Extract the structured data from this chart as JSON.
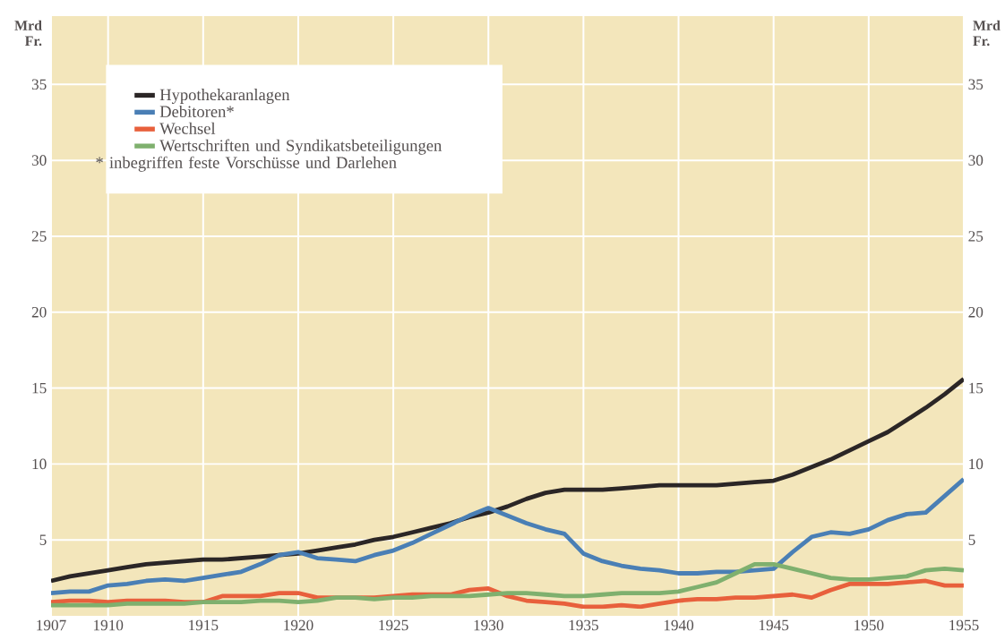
{
  "chart_data": {
    "type": "line",
    "ylabel": "Mrd Fr.",
    "y2label": "Mrd Fr.",
    "x": [
      1907,
      1908,
      1909,
      1910,
      1911,
      1912,
      1913,
      1914,
      1915,
      1916,
      1917,
      1918,
      1919,
      1920,
      1921,
      1922,
      1923,
      1924,
      1925,
      1926,
      1927,
      1928,
      1929,
      1930,
      1931,
      1932,
      1933,
      1934,
      1935,
      1936,
      1937,
      1938,
      1939,
      1940,
      1941,
      1942,
      1943,
      1944,
      1945,
      1946,
      1947,
      1948,
      1949,
      1950,
      1951,
      1952,
      1953,
      1954,
      1955
    ],
    "series": [
      {
        "name": "Hypothekaranlagen",
        "color": "#2b2626",
        "values": [
          2.3,
          2.6,
          2.8,
          3.0,
          3.2,
          3.4,
          3.5,
          3.6,
          3.7,
          3.7,
          3.8,
          3.9,
          4.0,
          4.1,
          4.3,
          4.5,
          4.7,
          5.0,
          5.2,
          5.5,
          5.8,
          6.1,
          6.5,
          6.8,
          7.2,
          7.7,
          8.1,
          8.3,
          8.3,
          8.3,
          8.4,
          8.5,
          8.6,
          8.6,
          8.6,
          8.6,
          8.7,
          8.8,
          8.9,
          9.3,
          9.8,
          10.3,
          10.9,
          11.5,
          12.1,
          12.9,
          13.7,
          14.6,
          15.6
        ]
      },
      {
        "name": "Debitoren*",
        "color": "#4a7fb5",
        "values": [
          1.5,
          1.6,
          1.6,
          2.0,
          2.1,
          2.3,
          2.4,
          2.3,
          2.5,
          2.7,
          2.9,
          3.4,
          4.0,
          4.2,
          3.8,
          3.7,
          3.6,
          4.0,
          4.3,
          4.8,
          5.4,
          6.0,
          6.6,
          7.1,
          6.6,
          6.1,
          5.7,
          5.4,
          4.1,
          3.6,
          3.3,
          3.1,
          3.0,
          2.8,
          2.8,
          2.9,
          2.9,
          3.0,
          3.1,
          4.2,
          5.2,
          5.5,
          5.4,
          5.7,
          6.3,
          6.7,
          6.8,
          7.9,
          9.0
        ]
      },
      {
        "name": "Wechsel",
        "color": "#e8603c",
        "values": [
          0.9,
          1.0,
          1.0,
          0.9,
          1.0,
          1.0,
          1.0,
          0.9,
          0.9,
          1.3,
          1.3,
          1.3,
          1.5,
          1.5,
          1.2,
          1.2,
          1.2,
          1.2,
          1.3,
          1.4,
          1.4,
          1.4,
          1.7,
          1.8,
          1.3,
          1.0,
          0.9,
          0.8,
          0.6,
          0.6,
          0.7,
          0.6,
          0.8,
          1.0,
          1.1,
          1.1,
          1.2,
          1.2,
          1.3,
          1.4,
          1.2,
          1.7,
          2.1,
          2.1,
          2.1,
          2.2,
          2.3,
          2.0,
          2.0
        ]
      },
      {
        "name": "Wertschriften und Syndikatsbeteiligungen",
        "color": "#7fb06e",
        "values": [
          0.7,
          0.7,
          0.7,
          0.7,
          0.8,
          0.8,
          0.8,
          0.8,
          0.9,
          0.9,
          0.9,
          1.0,
          1.0,
          0.9,
          1.0,
          1.2,
          1.2,
          1.1,
          1.2,
          1.2,
          1.3,
          1.3,
          1.3,
          1.4,
          1.5,
          1.5,
          1.4,
          1.3,
          1.3,
          1.4,
          1.5,
          1.5,
          1.5,
          1.6,
          1.9,
          2.2,
          2.8,
          3.4,
          3.4,
          3.1,
          2.8,
          2.5,
          2.4,
          2.4,
          2.5,
          2.6,
          3.0,
          3.1,
          3.0
        ]
      }
    ],
    "annotations": [
      "* inbegriffen feste Vorschüsse und Darlehen"
    ],
    "xlim": [
      1907,
      1955
    ],
    "ylim": [
      0,
      39.5
    ],
    "y2lim": [
      0,
      39.5
    ],
    "xticks": [
      1907,
      1910,
      1915,
      1920,
      1925,
      1930,
      1935,
      1940,
      1945,
      1950,
      1955
    ],
    "yticks": [
      5,
      10,
      15,
      20,
      25,
      30,
      35
    ],
    "y2ticks": [
      5,
      10,
      15,
      20,
      25,
      30,
      35
    ],
    "grid": true,
    "legend": "top left",
    "line_style": "solid",
    "marker": "none"
  }
}
